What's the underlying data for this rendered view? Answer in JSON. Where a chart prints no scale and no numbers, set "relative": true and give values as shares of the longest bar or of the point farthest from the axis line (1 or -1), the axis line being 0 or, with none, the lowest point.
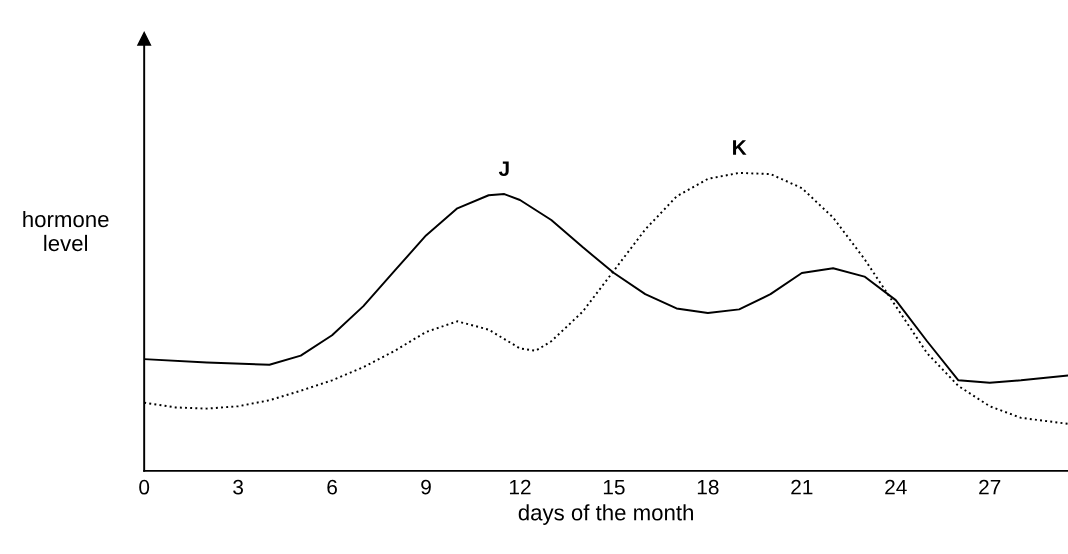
{
  "chart_data": {
    "type": "line",
    "relative": true,
    "xlabel": "days of the month",
    "ylabel": "hormone level",
    "xlim": [
      0,
      29.5
    ],
    "xticks": [
      0,
      3,
      6,
      9,
      12,
      15,
      18,
      21,
      24,
      27
    ],
    "grid": false,
    "marker": "none",
    "series": [
      {
        "name": "J",
        "color": "#000000",
        "line_style": "solid",
        "x": [
          0,
          2,
          4,
          5,
          6,
          7,
          8,
          9,
          10,
          11,
          11.5,
          12,
          13,
          14,
          15,
          16,
          17,
          18,
          19,
          20,
          21,
          22,
          23,
          24,
          25,
          26,
          27,
          28,
          29.5
        ],
        "values": [
          0.375,
          0.364,
          0.356,
          0.387,
          0.455,
          0.553,
          0.672,
          0.79,
          0.881,
          0.925,
          0.929,
          0.909,
          0.842,
          0.751,
          0.664,
          0.593,
          0.545,
          0.53,
          0.542,
          0.593,
          0.664,
          0.68,
          0.652,
          0.573,
          0.435,
          0.304,
          0.296,
          0.304,
          0.32
        ]
      },
      {
        "name": "K",
        "color": "#000000",
        "line_style": "dotted",
        "x": [
          0,
          1,
          2,
          3,
          4,
          5,
          6,
          7,
          8,
          9,
          10,
          11,
          12,
          12.5,
          13,
          14,
          15,
          16,
          17,
          18,
          19,
          20,
          21,
          22,
          23,
          24,
          25,
          26,
          27,
          28,
          29.5
        ],
        "values": [
          0.229,
          0.213,
          0.209,
          0.217,
          0.237,
          0.269,
          0.304,
          0.348,
          0.403,
          0.466,
          0.502,
          0.474,
          0.411,
          0.403,
          0.435,
          0.534,
          0.672,
          0.81,
          0.921,
          0.98,
          1,
          0.996,
          0.949,
          0.85,
          0.711,
          0.553,
          0.395,
          0.285,
          0.217,
          0.178,
          0.158
        ]
      }
    ]
  }
}
